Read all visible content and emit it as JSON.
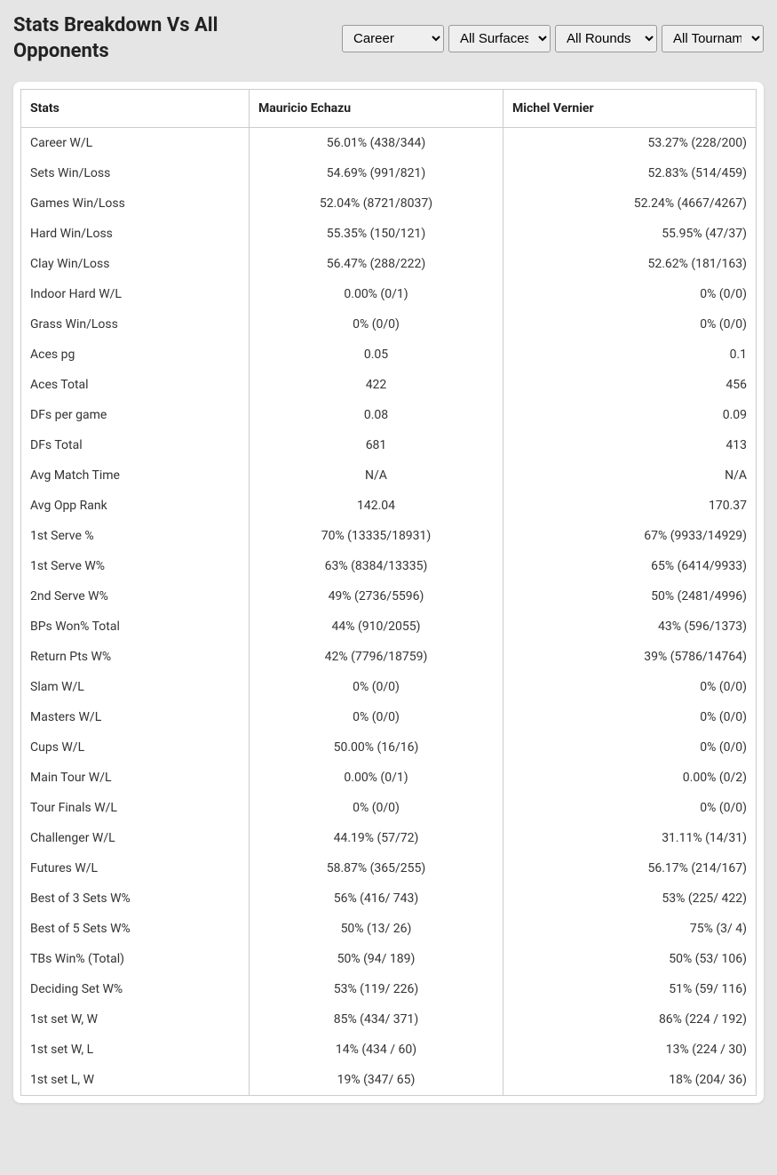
{
  "header": {
    "title": "Stats Breakdown Vs All Opponents"
  },
  "filters": {
    "period": {
      "selected": "Career",
      "options": [
        "Career"
      ]
    },
    "surface": {
      "selected": "All Surfaces",
      "options": [
        "All Surfaces"
      ]
    },
    "rounds": {
      "selected": "All Rounds",
      "options": [
        "All Rounds"
      ]
    },
    "tournament": {
      "selected": "All Tournaments",
      "options": [
        "All Tournaments"
      ]
    }
  },
  "table": {
    "columns": [
      "Stats",
      "Mauricio Echazu",
      "Michel Vernier"
    ],
    "rows": [
      [
        "Career W/L",
        "56.01% (438/344)",
        "53.27% (228/200)"
      ],
      [
        "Sets Win/Loss",
        "54.69% (991/821)",
        "52.83% (514/459)"
      ],
      [
        "Games Win/Loss",
        "52.04% (8721/8037)",
        "52.24% (4667/4267)"
      ],
      [
        "Hard Win/Loss",
        "55.35% (150/121)",
        "55.95% (47/37)"
      ],
      [
        "Clay Win/Loss",
        "56.47% (288/222)",
        "52.62% (181/163)"
      ],
      [
        "Indoor Hard W/L",
        "0.00% (0/1)",
        "0% (0/0)"
      ],
      [
        "Grass Win/Loss",
        "0% (0/0)",
        "0% (0/0)"
      ],
      [
        "Aces pg",
        "0.05",
        "0.1"
      ],
      [
        "Aces Total",
        "422",
        "456"
      ],
      [
        "DFs per game",
        "0.08",
        "0.09"
      ],
      [
        "DFs Total",
        "681",
        "413"
      ],
      [
        "Avg Match Time",
        "N/A",
        "N/A"
      ],
      [
        "Avg Opp Rank",
        "142.04",
        "170.37"
      ],
      [
        "1st Serve %",
        "70% (13335/18931)",
        "67% (9933/14929)"
      ],
      [
        "1st Serve W%",
        "63% (8384/13335)",
        "65% (6414/9933)"
      ],
      [
        "2nd Serve W%",
        "49% (2736/5596)",
        "50% (2481/4996)"
      ],
      [
        "BPs Won% Total",
        "44% (910/2055)",
        "43% (596/1373)"
      ],
      [
        "Return Pts W%",
        "42% (7796/18759)",
        "39% (5786/14764)"
      ],
      [
        "Slam W/L",
        "0% (0/0)",
        "0% (0/0)"
      ],
      [
        "Masters W/L",
        "0% (0/0)",
        "0% (0/0)"
      ],
      [
        "Cups W/L",
        "50.00% (16/16)",
        "0% (0/0)"
      ],
      [
        "Main Tour W/L",
        "0.00% (0/1)",
        "0.00% (0/2)"
      ],
      [
        "Tour Finals W/L",
        "0% (0/0)",
        "0% (0/0)"
      ],
      [
        "Challenger W/L",
        "44.19% (57/72)",
        "31.11% (14/31)"
      ],
      [
        "Futures W/L",
        "58.87% (365/255)",
        "56.17% (214/167)"
      ],
      [
        "Best of 3 Sets W%",
        "56% (416/ 743)",
        "53% (225/ 422)"
      ],
      [
        "Best of 5 Sets W%",
        "50% (13/ 26)",
        "75% (3/ 4)"
      ],
      [
        "TBs Win% (Total)",
        "50% (94/ 189)",
        "50% (53/ 106)"
      ],
      [
        "Deciding Set W%",
        "53% (119/ 226)",
        "51% (59/ 116)"
      ],
      [
        "1st set W, W",
        "85% (434/ 371)",
        "86% (224 / 192)"
      ],
      [
        "1st set W, L",
        "14% (434 / 60)",
        "13% (224 / 30)"
      ],
      [
        "1st set L, W",
        "19% (347/ 65)",
        "18% (204/ 36)"
      ]
    ]
  }
}
